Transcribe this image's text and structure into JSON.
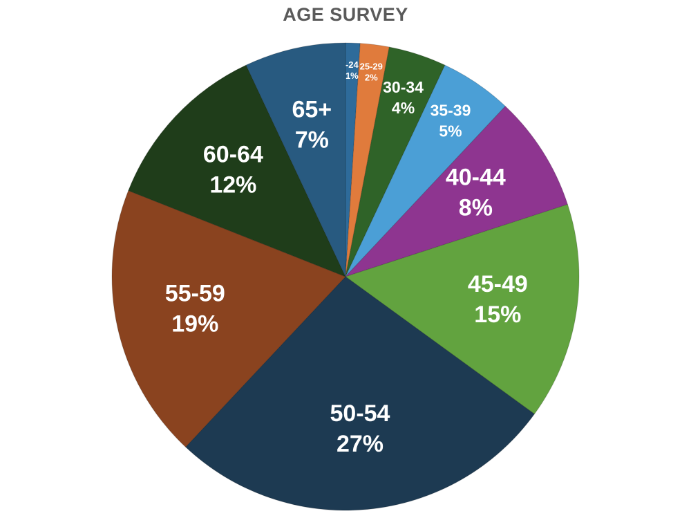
{
  "chart_data": {
    "type": "pie",
    "title": "AGE SURVEY",
    "title_color": "#5a5a5a",
    "label_color": "#ffffff",
    "slices": [
      {
        "category": "-24",
        "value": 1,
        "label": "1%",
        "color": "#2e6b9a"
      },
      {
        "category": "25-29",
        "value": 2,
        "label": "2%",
        "color": "#e07b3c"
      },
      {
        "category": "30-34",
        "value": 4,
        "label": "4%",
        "color": "#2f6328"
      },
      {
        "category": "35-39",
        "value": 5,
        "label": "5%",
        "color": "#4b9fd6"
      },
      {
        "category": "40-44",
        "value": 8,
        "label": "8%",
        "color": "#8e3590"
      },
      {
        "category": "45-49",
        "value": 15,
        "label": "15%",
        "color": "#62a33f"
      },
      {
        "category": "50-54",
        "value": 27,
        "label": "27%",
        "color": "#1d3a52"
      },
      {
        "category": "55-59",
        "value": 19,
        "label": "19%",
        "color": "#8a431f"
      },
      {
        "category": "60-64",
        "value": 12,
        "label": "12%",
        "color": "#1f3d1a"
      },
      {
        "category": "65+",
        "value": 7,
        "label": "7%",
        "color": "#285a80"
      }
    ]
  }
}
